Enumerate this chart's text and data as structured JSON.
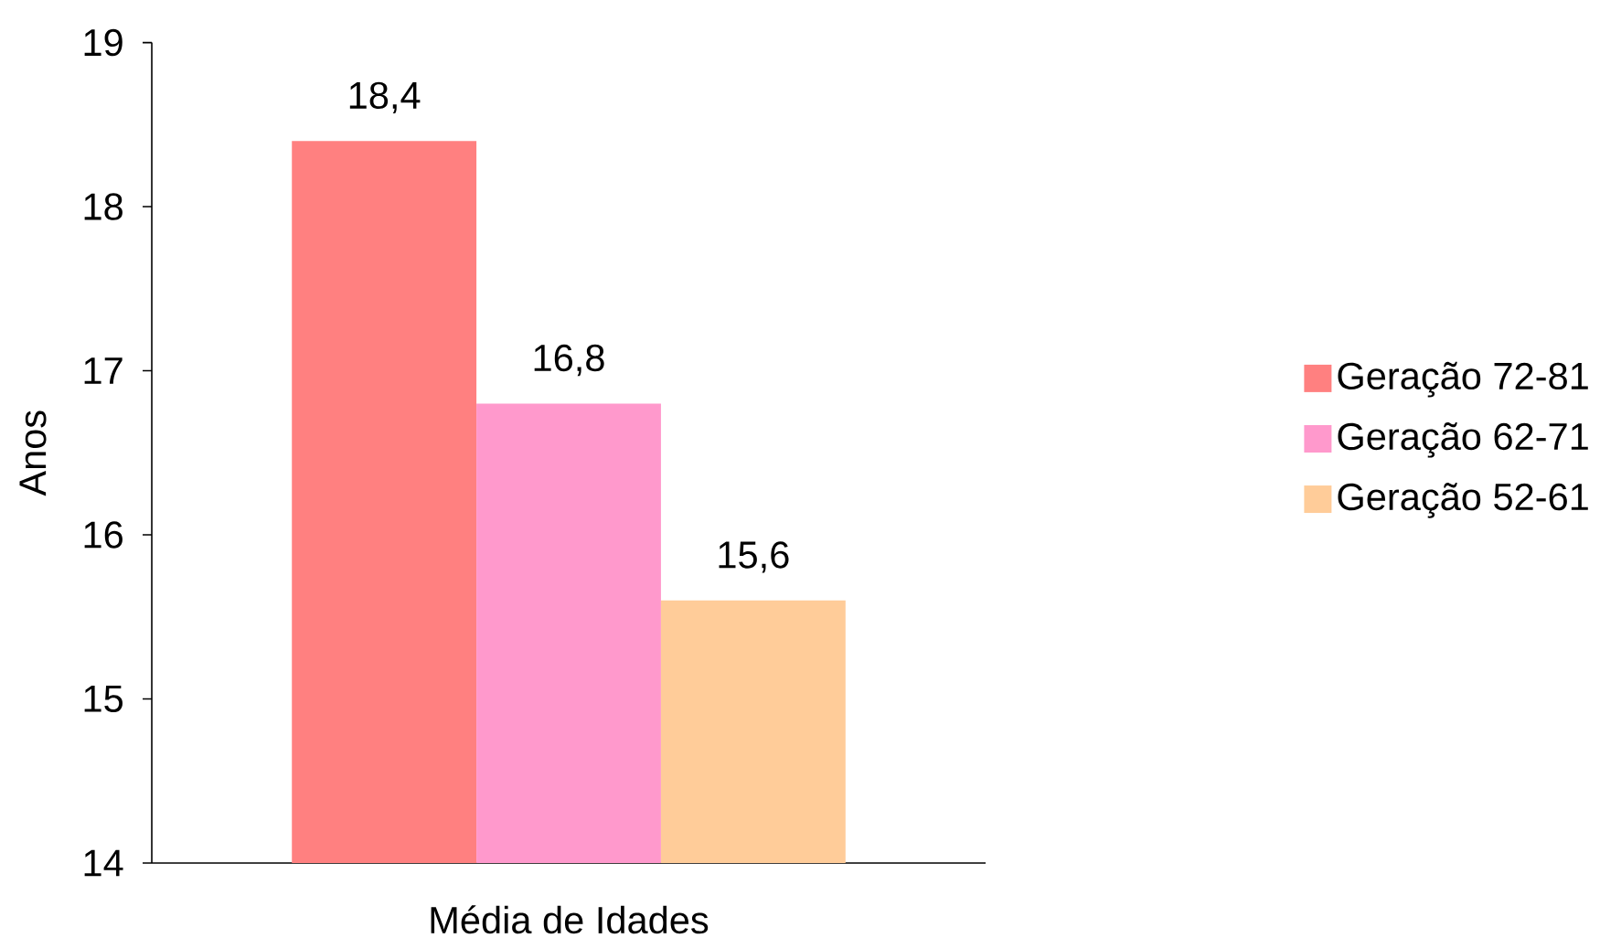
{
  "chart_data": {
    "type": "bar",
    "ylabel": "Anos",
    "categories": [
      "Média de Idades"
    ],
    "series": [
      {
        "name": "Geração 72-81",
        "color": "#ff8080",
        "values": [
          18.4
        ],
        "value_labels": [
          "18,4"
        ]
      },
      {
        "name": "Geração 62-71",
        "color": "#ff99cc",
        "values": [
          16.8
        ],
        "value_labels": [
          "16,8"
        ]
      },
      {
        "name": "Geração 52-61",
        "color": "#ffcc99",
        "values": [
          15.6
        ],
        "value_labels": [
          "15,6"
        ]
      }
    ],
    "ylim": [
      14,
      19
    ],
    "yticks": [
      14,
      15,
      16,
      17,
      18,
      19
    ],
    "legend": "right"
  }
}
